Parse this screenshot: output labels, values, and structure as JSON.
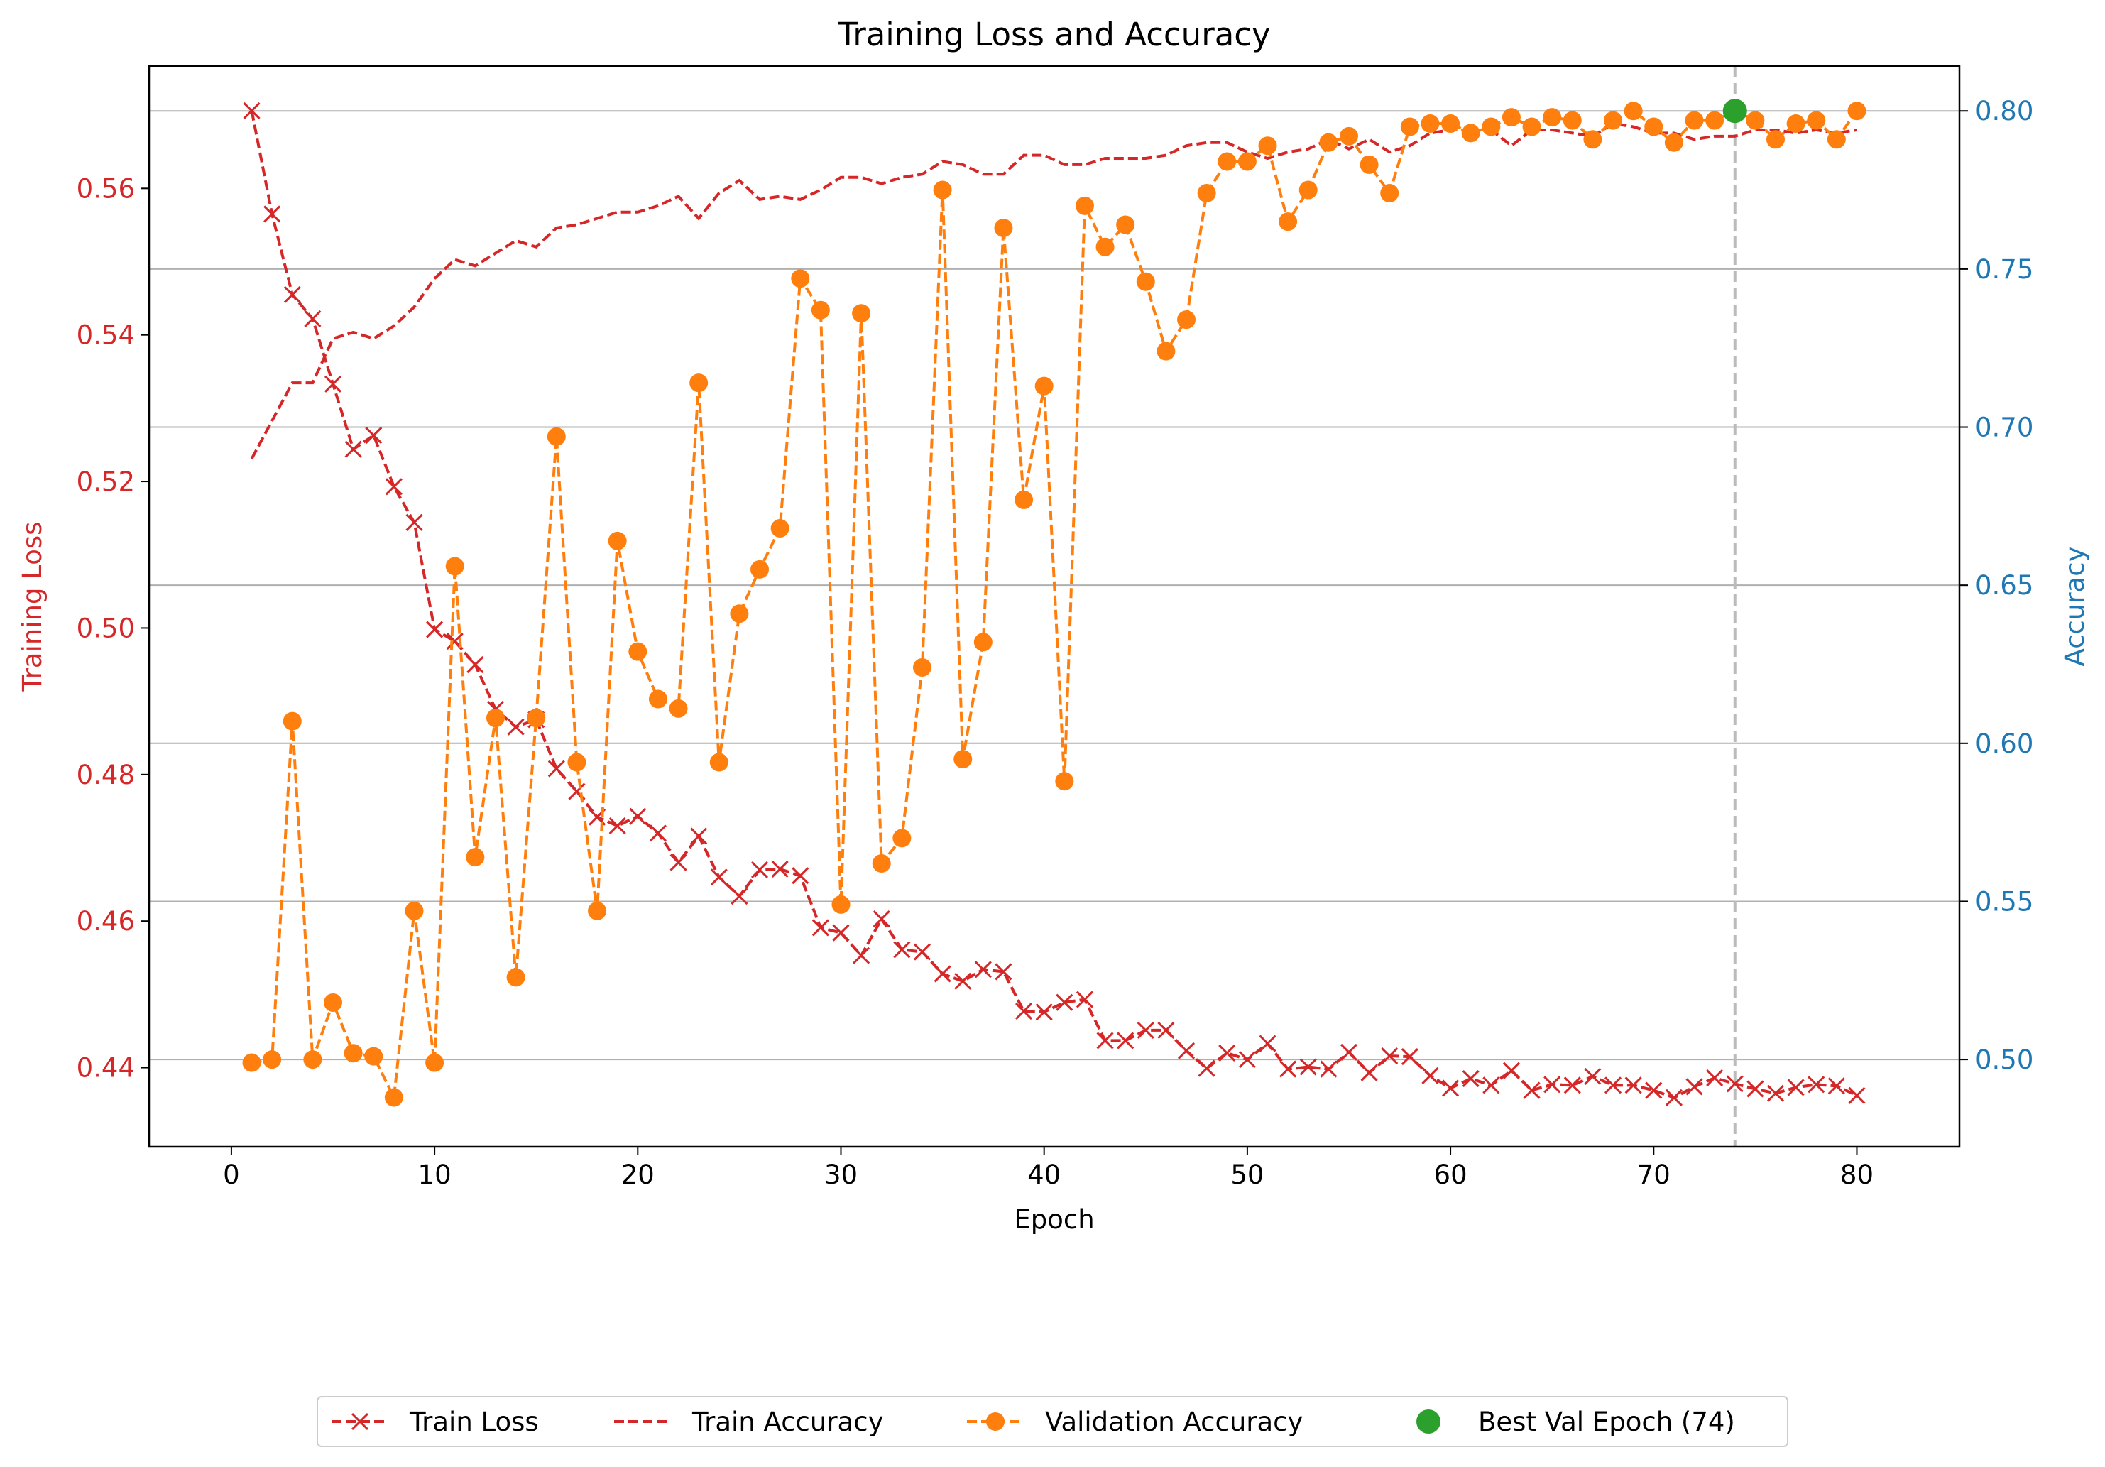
{
  "chart_data": {
    "type": "line",
    "title": "Training Loss and Accuracy",
    "xlabel": "Epoch",
    "ylabel_left": "Training Loss",
    "ylabel_right": "Accuracy",
    "xlim": [
      -4.05,
      85.05
    ],
    "ylim_left": [
      0.4292,
      0.5767
    ],
    "ylim_right": [
      0.4724,
      0.8142
    ],
    "x_ticks": [
      0,
      10,
      20,
      30,
      40,
      50,
      60,
      70,
      80
    ],
    "y_ticks_left": [
      0.44,
      0.46,
      0.48,
      0.5,
      0.52,
      0.54,
      0.56
    ],
    "y_ticks_right": [
      0.5,
      0.55,
      0.6,
      0.65,
      0.7,
      0.75,
      0.8
    ],
    "grid": "horizontal (right axis)",
    "legend_placement": "bottom-center, below plot",
    "colors": {
      "loss_axis": "#d62728",
      "accuracy_axis": "#1f77b4",
      "train_loss": "#d62728",
      "train_accuracy": "#d62728",
      "val_accuracy": "#ff7f0e",
      "best_epoch": "#2ca02c",
      "best_epoch_line": "#bbbbbb"
    },
    "epochs": [
      1,
      2,
      3,
      4,
      5,
      6,
      7,
      8,
      9,
      10,
      11,
      12,
      13,
      14,
      15,
      16,
      17,
      18,
      19,
      20,
      21,
      22,
      23,
      24,
      25,
      26,
      27,
      28,
      29,
      30,
      31,
      32,
      33,
      34,
      35,
      36,
      37,
      38,
      39,
      40,
      41,
      42,
      43,
      44,
      45,
      46,
      47,
      48,
      49,
      50,
      51,
      52,
      53,
      54,
      55,
      56,
      57,
      58,
      59,
      60,
      61,
      62,
      63,
      64,
      65,
      66,
      67,
      68,
      69,
      70,
      71,
      72,
      73,
      74,
      75,
      76,
      77,
      78,
      79,
      80
    ],
    "series": [
      {
        "name": "Train Loss",
        "axis": "left",
        "style": "dashed-x",
        "values": [
          0.5706,
          0.5565,
          0.5455,
          0.5422,
          0.5333,
          0.5244,
          0.5263,
          0.5193,
          0.5144,
          0.4998,
          0.4982,
          0.495,
          0.4889,
          0.4865,
          0.4875,
          0.4808,
          0.4777,
          0.4742,
          0.473,
          0.4743,
          0.472,
          0.468,
          0.4716,
          0.466,
          0.4634,
          0.467,
          0.4671,
          0.4662,
          0.4591,
          0.4584,
          0.4553,
          0.4603,
          0.4561,
          0.4558,
          0.4528,
          0.4518,
          0.4534,
          0.4531,
          0.4477,
          0.4476,
          0.4489,
          0.4493,
          0.4437,
          0.4437,
          0.4451,
          0.4451,
          0.4423,
          0.4399,
          0.442,
          0.4411,
          0.4433,
          0.4398,
          0.4401,
          0.4398,
          0.4421,
          0.4393,
          0.4416,
          0.4415,
          0.4389,
          0.4372,
          0.4385,
          0.4376,
          0.4396,
          0.4369,
          0.4377,
          0.4376,
          0.4388,
          0.4376,
          0.4376,
          0.4369,
          0.4359,
          0.4374,
          0.4386,
          0.4378,
          0.4371,
          0.4365,
          0.4373,
          0.4377,
          0.4375,
          0.4362
        ]
      },
      {
        "name": "Train Accuracy",
        "axis": "right",
        "style": "dashed",
        "values": [
          0.69,
          0.702,
          0.714,
          0.714,
          0.728,
          0.73,
          0.728,
          0.732,
          0.738,
          0.747,
          0.753,
          0.751,
          0.755,
          0.759,
          0.757,
          0.763,
          0.764,
          0.766,
          0.768,
          0.768,
          0.77,
          0.773,
          0.766,
          0.774,
          0.778,
          0.772,
          0.773,
          0.772,
          0.775,
          0.779,
          0.779,
          0.777,
          0.779,
          0.78,
          0.784,
          0.783,
          0.78,
          0.78,
          0.786,
          0.786,
          0.783,
          0.783,
          0.785,
          0.785,
          0.785,
          0.786,
          0.789,
          0.79,
          0.79,
          0.787,
          0.785,
          0.787,
          0.788,
          0.791,
          0.788,
          0.791,
          0.787,
          0.789,
          0.793,
          0.794,
          0.794,
          0.794,
          0.789,
          0.794,
          0.794,
          0.793,
          0.792,
          0.796,
          0.795,
          0.793,
          0.793,
          0.791,
          0.792,
          0.792,
          0.794,
          0.794,
          0.793,
          0.794,
          0.793,
          0.794
        ]
      },
      {
        "name": "Validation Accuracy",
        "axis": "right",
        "style": "dashed-dot",
        "values": [
          0.499,
          0.5,
          0.607,
          0.5,
          0.518,
          0.502,
          0.501,
          0.488,
          0.547,
          0.499,
          0.656,
          0.564,
          0.608,
          0.526,
          0.608,
          0.697,
          0.594,
          0.547,
          0.664,
          0.629,
          0.614,
          0.611,
          0.714,
          0.594,
          0.641,
          0.655,
          0.668,
          0.747,
          0.737,
          0.549,
          0.736,
          0.562,
          0.57,
          0.624,
          0.775,
          0.595,
          0.632,
          0.763,
          0.677,
          0.713,
          0.588,
          0.77,
          0.757,
          0.764,
          0.746,
          0.724,
          0.734,
          0.774,
          0.784,
          0.784,
          0.789,
          0.765,
          0.775,
          0.79,
          0.792,
          0.783,
          0.774,
          0.795,
          0.796,
          0.796,
          0.793,
          0.795,
          0.798,
          0.795,
          0.798,
          0.797,
          0.791,
          0.797,
          0.8,
          0.795,
          0.79,
          0.797,
          0.797,
          0.8,
          0.797,
          0.791,
          0.796,
          0.797,
          0.791,
          0.8
        ]
      },
      {
        "name": "Best Val Epoch (74)",
        "axis": "right",
        "style": "point",
        "x": [
          74
        ],
        "values": [
          0.8
        ]
      }
    ],
    "annotations": [
      {
        "type": "vline",
        "x": 74,
        "style": "dashed",
        "color": "#bbbbbb"
      }
    ]
  }
}
